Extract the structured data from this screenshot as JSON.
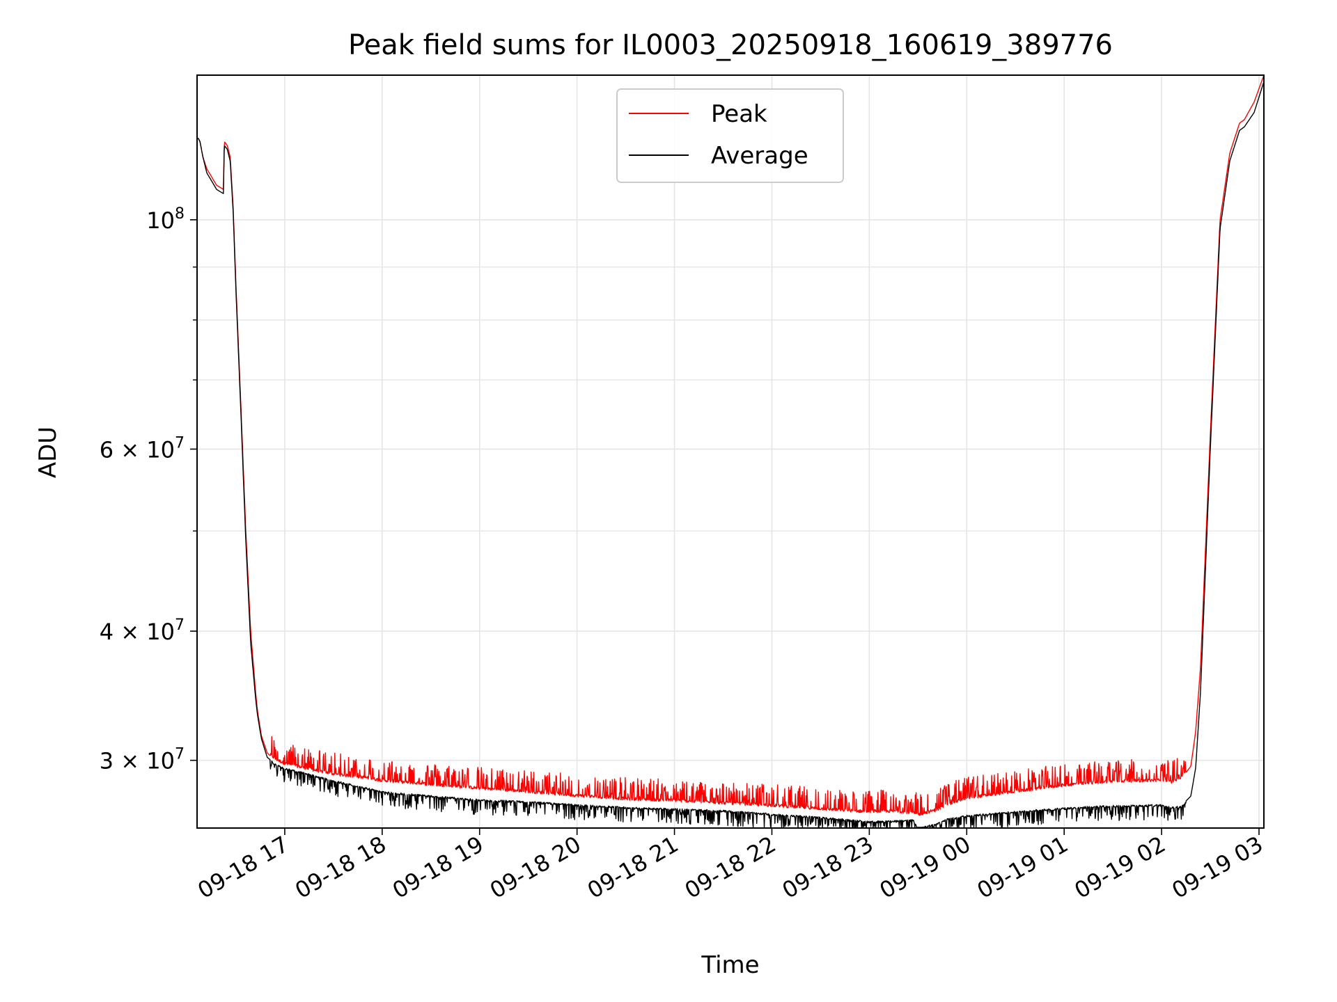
{
  "chart_data": {
    "type": "line",
    "title": "Peak field sums for IL0003_20250918_160619_389776",
    "xlabel": "Time",
    "ylabel": "ADU",
    "yscale": "log",
    "grid": true,
    "legend_position": "upper center",
    "colors": {
      "peak": "#ff0000",
      "average": "#000000",
      "grid": "#e5e5e5"
    },
    "xlim_hours": [
      16.1,
      27.05
    ],
    "ylim": [
      25800000,
      138000000
    ],
    "x_ticks": [
      {
        "hours": 17,
        "label": "09-18 17"
      },
      {
        "hours": 18,
        "label": "09-18 18"
      },
      {
        "hours": 19,
        "label": "09-18 19"
      },
      {
        "hours": 20,
        "label": "09-18 20"
      },
      {
        "hours": 21,
        "label": "09-18 21"
      },
      {
        "hours": 22,
        "label": "09-18 22"
      },
      {
        "hours": 23,
        "label": "09-18 23"
      },
      {
        "hours": 24,
        "label": "09-19 00"
      },
      {
        "hours": 25,
        "label": "09-19 01"
      },
      {
        "hours": 26,
        "label": "09-19 02"
      },
      {
        "hours": 27,
        "label": "09-19 03"
      }
    ],
    "y_major_ticks": [
      {
        "value": 100000000,
        "base": "10",
        "exp": "8"
      },
      {
        "value": 60000000,
        "base": "6 × 10",
        "exp": "7"
      },
      {
        "value": 40000000,
        "base": "4 × 10",
        "exp": "7"
      },
      {
        "value": 30000000,
        "base": "3 × 10",
        "exp": "7"
      }
    ],
    "y_minor_ticks": [
      90000000,
      80000000,
      70000000,
      50000000
    ],
    "series": [
      {
        "name": "Peak",
        "spiky": true,
        "x_hours": [
          16.11,
          16.13,
          16.16,
          16.2,
          16.25,
          16.3,
          16.37,
          16.38,
          16.41,
          16.44,
          16.47,
          16.5,
          16.55,
          16.6,
          16.65,
          16.7,
          16.72,
          16.76,
          16.82,
          16.9,
          17.0,
          17.2,
          17.5,
          17.8,
          18.0,
          18.5,
          19.0,
          19.5,
          20.0,
          20.5,
          21.0,
          21.5,
          22.0,
          22.5,
          22.9,
          23.0,
          23.3,
          23.45,
          23.5,
          23.7,
          23.8,
          24.0,
          24.5,
          25.0,
          25.5,
          26.0,
          26.1,
          26.2,
          26.3,
          26.35,
          26.4,
          26.5,
          26.6,
          26.7,
          26.8,
          26.85,
          26.95,
          27.05
        ],
        "values": [
          120000000,
          119000000,
          115000000,
          112000000,
          110000000,
          108000000,
          107000000,
          119000000,
          118000000,
          115000000,
          103000000,
          86000000,
          66000000,
          50000000,
          40000000,
          35000000,
          33500000,
          31700000,
          30500000,
          30000000,
          29700000,
          29400000,
          29000000,
          28800000,
          28600000,
          28350000,
          28100000,
          27900000,
          27650000,
          27450000,
          27350000,
          27200000,
          27050000,
          26850000,
          26700000,
          26700000,
          26700000,
          26600000,
          26500000,
          26800000,
          27100000,
          27500000,
          27900000,
          28300000,
          28550000,
          28600000,
          28500000,
          28800000,
          29600000,
          32000000,
          37000000,
          62000000,
          100000000,
          116000000,
          124000000,
          125000000,
          130000000,
          138000000
        ]
      },
      {
        "name": "Average",
        "spiky": false,
        "x_hours": [
          16.11,
          16.13,
          16.16,
          16.2,
          16.25,
          16.3,
          16.37,
          16.38,
          16.41,
          16.44,
          16.47,
          16.5,
          16.55,
          16.6,
          16.65,
          16.7,
          16.72,
          16.76,
          16.82,
          16.9,
          17.0,
          17.2,
          17.5,
          17.8,
          18.0,
          18.5,
          19.0,
          19.5,
          20.0,
          20.5,
          21.0,
          21.5,
          22.0,
          22.5,
          22.9,
          23.0,
          23.3,
          23.45,
          23.5,
          23.7,
          23.8,
          24.0,
          24.5,
          25.0,
          25.5,
          26.0,
          26.1,
          26.2,
          26.3,
          26.35,
          26.4,
          26.5,
          26.6,
          26.7,
          26.8,
          26.85,
          26.95,
          27.05
        ],
        "values": [
          120000000,
          119000000,
          115000000,
          111000000,
          109000000,
          107000000,
          106000000,
          118000000,
          117000000,
          114000000,
          102000000,
          85000000,
          65000000,
          49000000,
          39000000,
          34500000,
          33200000,
          31500000,
          30200000,
          29800000,
          29500000,
          29200000,
          28700000,
          28300000,
          28000000,
          27750000,
          27500000,
          27400000,
          27200000,
          27050000,
          26950000,
          26850000,
          26650000,
          26450000,
          26250000,
          26200000,
          26250000,
          26300000,
          25800000,
          26100000,
          26350000,
          26550000,
          26800000,
          27000000,
          27150000,
          27200000,
          27050000,
          27100000,
          27700000,
          29500000,
          35000000,
          60000000,
          98000000,
          114000000,
          122000000,
          123000000,
          127000000,
          136000000
        ]
      }
    ]
  }
}
